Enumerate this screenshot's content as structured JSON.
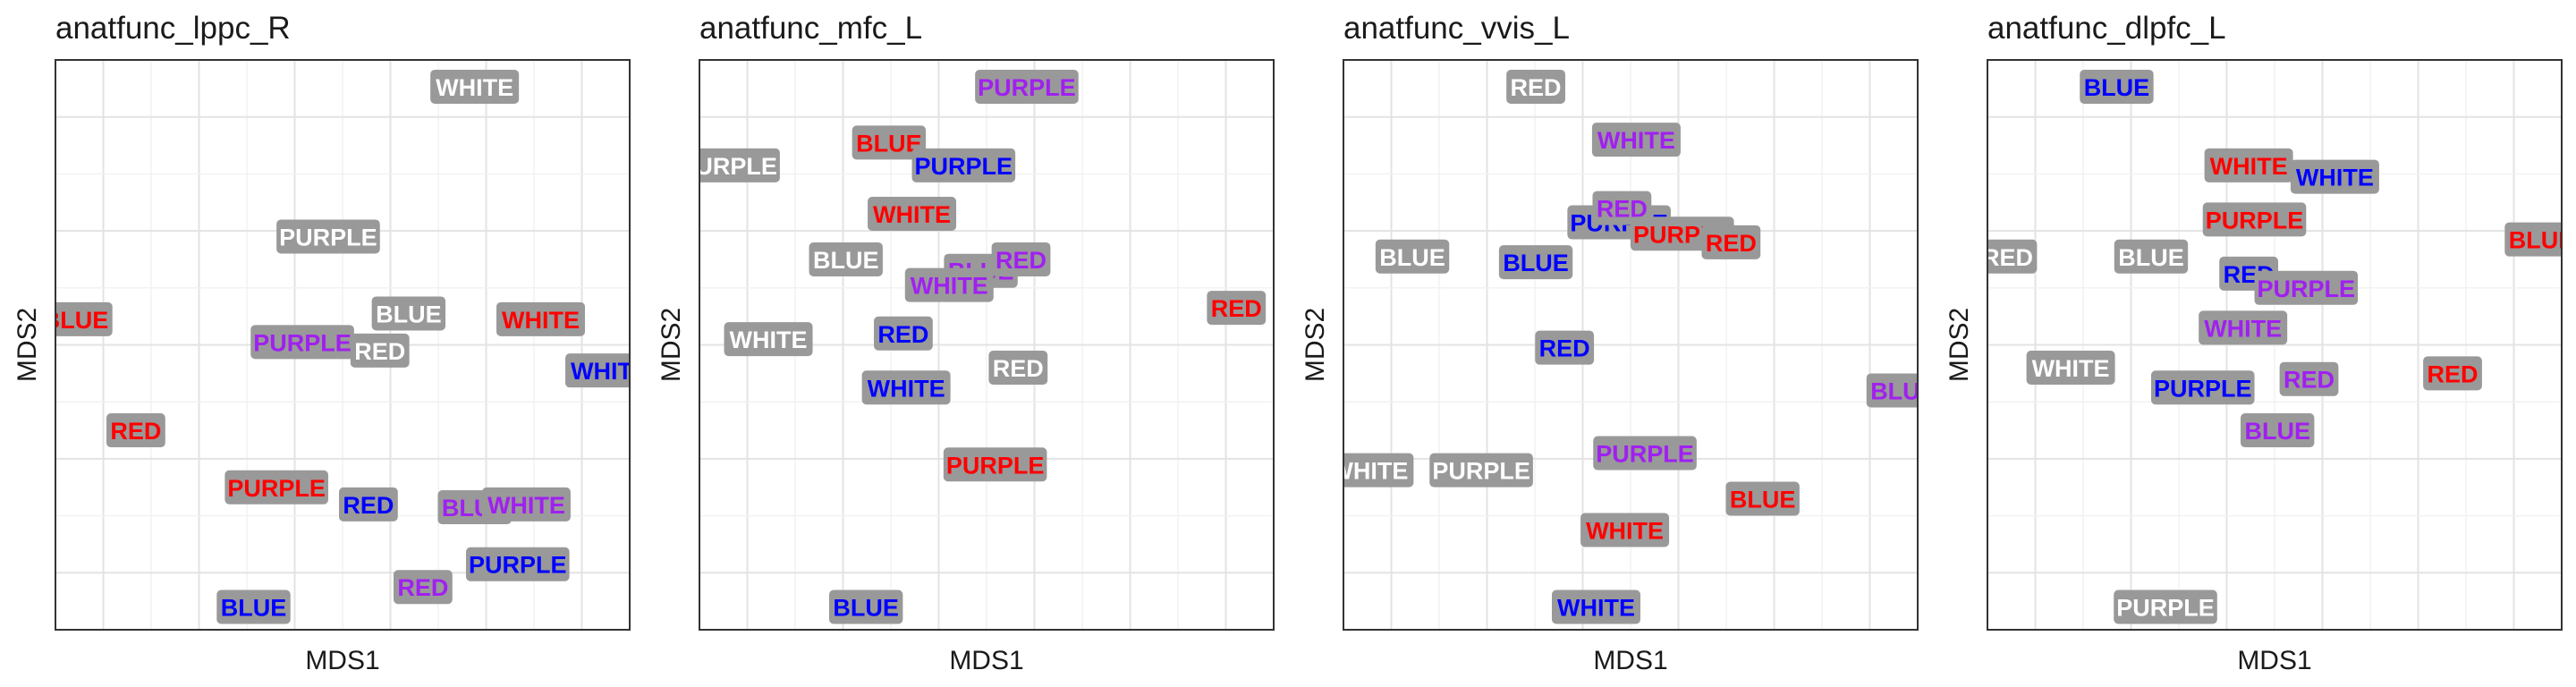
{
  "colors": {
    "label_bg": "#999999",
    "RED": "#ff0000",
    "BLUE": "#0000ff",
    "PURPLE": "#a020f0",
    "WHITE": "#ffffff",
    "grid_major": "#e3e3e3",
    "grid_minor": "#f1f1f1",
    "panel_border": "#333333"
  },
  "chart_data": [
    {
      "type": "scatter",
      "title": "anatfunc_lppc_R",
      "xlabel": "MDS1",
      "ylabel": "MDS2",
      "xlim": [
        0,
        100
      ],
      "ylim": [
        0,
        100
      ],
      "grid": true,
      "points": [
        {
          "x": 73,
          "y": 95.3,
          "text": "WHITE",
          "color": "WHITE"
        },
        {
          "x": 47.5,
          "y": 69,
          "text": "PURPLE",
          "color": "WHITE"
        },
        {
          "x": 3.5,
          "y": 54.5,
          "text": "BLUE",
          "color": "RED"
        },
        {
          "x": 61.5,
          "y": 55.5,
          "text": "BLUE",
          "color": "WHITE"
        },
        {
          "x": 84.5,
          "y": 54.5,
          "text": "WHITE",
          "color": "RED"
        },
        {
          "x": 43,
          "y": 50.5,
          "text": "PURPLE",
          "color": "PURPLE"
        },
        {
          "x": 56.5,
          "y": 49,
          "text": "RED",
          "color": "WHITE"
        },
        {
          "x": 96.5,
          "y": 45.5,
          "text": "WHITE",
          "color": "BLUE"
        },
        {
          "x": 14,
          "y": 35,
          "text": "RED",
          "color": "RED"
        },
        {
          "x": 38.5,
          "y": 25,
          "text": "PURPLE",
          "color": "RED"
        },
        {
          "x": 54.5,
          "y": 22,
          "text": "RED",
          "color": "BLUE"
        },
        {
          "x": 73,
          "y": 21.5,
          "text": "BLUE",
          "color": "PURPLE"
        },
        {
          "x": 82,
          "y": 22,
          "text": "WHITE",
          "color": "PURPLE"
        },
        {
          "x": 80.5,
          "y": 11.5,
          "text": "PURPLE",
          "color": "BLUE"
        },
        {
          "x": 64,
          "y": 7.5,
          "text": "RED",
          "color": "PURPLE"
        },
        {
          "x": 34.5,
          "y": 4,
          "text": "BLUE",
          "color": "BLUE"
        }
      ]
    },
    {
      "type": "scatter",
      "title": "anatfunc_mfc_L",
      "xlabel": "MDS1",
      "ylabel": "MDS2",
      "xlim": [
        0,
        100
      ],
      "ylim": [
        0,
        100
      ],
      "grid": true,
      "points": [
        {
          "x": 57,
          "y": 95.3,
          "text": "PURPLE",
          "color": "PURPLE"
        },
        {
          "x": 33,
          "y": 85.5,
          "text": "BLUE",
          "color": "RED"
        },
        {
          "x": 5,
          "y": 81.5,
          "text": "PURPLE",
          "color": "WHITE"
        },
        {
          "x": 46,
          "y": 81.5,
          "text": "PURPLE",
          "color": "BLUE"
        },
        {
          "x": 37,
          "y": 73,
          "text": "WHITE",
          "color": "RED"
        },
        {
          "x": 25.5,
          "y": 65,
          "text": "BLUE",
          "color": "WHITE"
        },
        {
          "x": 49,
          "y": 63,
          "text": "BLUE",
          "color": "PURPLE"
        },
        {
          "x": 56,
          "y": 65,
          "text": "RED",
          "color": "PURPLE"
        },
        {
          "x": 43.5,
          "y": 60.5,
          "text": "WHITE",
          "color": "PURPLE"
        },
        {
          "x": 93.5,
          "y": 56.5,
          "text": "RED",
          "color": "RED"
        },
        {
          "x": 12,
          "y": 51,
          "text": "WHITE",
          "color": "WHITE"
        },
        {
          "x": 35.5,
          "y": 52,
          "text": "RED",
          "color": "BLUE"
        },
        {
          "x": 55.5,
          "y": 46,
          "text": "RED",
          "color": "WHITE"
        },
        {
          "x": 36,
          "y": 42.5,
          "text": "WHITE",
          "color": "BLUE"
        },
        {
          "x": 51.5,
          "y": 29,
          "text": "PURPLE",
          "color": "RED"
        },
        {
          "x": 29,
          "y": 4,
          "text": "BLUE",
          "color": "BLUE"
        }
      ]
    },
    {
      "type": "scatter",
      "title": "anatfunc_vvis_L",
      "xlabel": "MDS1",
      "ylabel": "MDS2",
      "xlim": [
        0,
        100
      ],
      "ylim": [
        0,
        100
      ],
      "grid": true,
      "points": [
        {
          "x": 33.5,
          "y": 95.3,
          "text": "RED",
          "color": "WHITE"
        },
        {
          "x": 51,
          "y": 86,
          "text": "WHITE",
          "color": "PURPLE"
        },
        {
          "x": 48,
          "y": 71.5,
          "text": "PURPLE",
          "color": "BLUE"
        },
        {
          "x": 48.5,
          "y": 74,
          "text": "RED",
          "color": "PURPLE"
        },
        {
          "x": 59,
          "y": 69.5,
          "text": "PURPLE",
          "color": "RED"
        },
        {
          "x": 67.5,
          "y": 68,
          "text": "RED",
          "color": "RED"
        },
        {
          "x": 12,
          "y": 65.5,
          "text": "BLUE",
          "color": "WHITE"
        },
        {
          "x": 33.5,
          "y": 64.5,
          "text": "BLUE",
          "color": "BLUE"
        },
        {
          "x": 38.5,
          "y": 49.5,
          "text": "RED",
          "color": "BLUE"
        },
        {
          "x": 97.5,
          "y": 42,
          "text": "BLUE",
          "color": "PURPLE"
        },
        {
          "x": 52.5,
          "y": 31,
          "text": "PURPLE",
          "color": "PURPLE"
        },
        {
          "x": 4.5,
          "y": 28,
          "text": "WHITE",
          "color": "WHITE"
        },
        {
          "x": 24,
          "y": 28,
          "text": "PURPLE",
          "color": "WHITE"
        },
        {
          "x": 73,
          "y": 23,
          "text": "BLUE",
          "color": "RED"
        },
        {
          "x": 49,
          "y": 17.5,
          "text": "WHITE",
          "color": "RED"
        },
        {
          "x": 44,
          "y": 4,
          "text": "WHITE",
          "color": "BLUE"
        }
      ]
    },
    {
      "type": "scatter",
      "title": "anatfunc_dlpfc_L",
      "xlabel": "MDS1",
      "ylabel": "MDS2",
      "xlim": [
        0,
        100
      ],
      "ylim": [
        0,
        100
      ],
      "grid": true,
      "points": [
        {
          "x": 22.5,
          "y": 95.3,
          "text": "BLUE",
          "color": "BLUE"
        },
        {
          "x": 45.5,
          "y": 81.5,
          "text": "WHITE",
          "color": "RED"
        },
        {
          "x": 60.5,
          "y": 79.5,
          "text": "WHITE",
          "color": "BLUE"
        },
        {
          "x": 46.5,
          "y": 72,
          "text": "PURPLE",
          "color": "RED"
        },
        {
          "x": 96.5,
          "y": 68.5,
          "text": "BLUE",
          "color": "RED"
        },
        {
          "x": 3.5,
          "y": 65.5,
          "text": "RED",
          "color": "WHITE"
        },
        {
          "x": 28.5,
          "y": 65.5,
          "text": "BLUE",
          "color": "WHITE"
        },
        {
          "x": 45.5,
          "y": 62.5,
          "text": "RED",
          "color": "BLUE"
        },
        {
          "x": 55.5,
          "y": 60,
          "text": "PURPLE",
          "color": "PURPLE"
        },
        {
          "x": 44.5,
          "y": 53,
          "text": "WHITE",
          "color": "PURPLE"
        },
        {
          "x": 14.5,
          "y": 46,
          "text": "WHITE",
          "color": "WHITE"
        },
        {
          "x": 81,
          "y": 45,
          "text": "RED",
          "color": "RED"
        },
        {
          "x": 37.5,
          "y": 42.5,
          "text": "PURPLE",
          "color": "BLUE"
        },
        {
          "x": 56,
          "y": 44,
          "text": "RED",
          "color": "PURPLE"
        },
        {
          "x": 50.5,
          "y": 35,
          "text": "BLUE",
          "color": "PURPLE"
        },
        {
          "x": 31,
          "y": 4,
          "text": "PURPLE",
          "color": "WHITE"
        }
      ]
    }
  ]
}
